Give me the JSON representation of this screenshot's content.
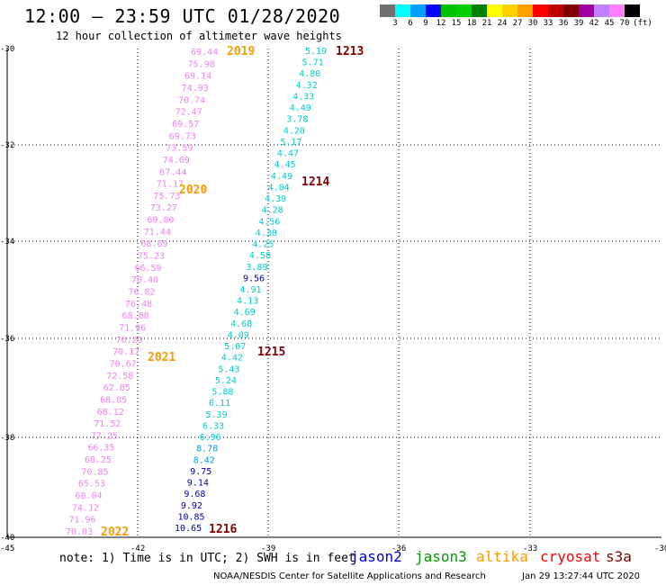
{
  "header": {
    "title": "12:00 — 23:59 UTC 01/28/2020",
    "subtitle": "12 hour collection of altimeter wave heights"
  },
  "legend": {
    "colors": [
      "#707070",
      "#00ffff",
      "#00a0ff",
      "#0000ff",
      "#00c000",
      "#00d000",
      "#008000",
      "#ffff00",
      "#ffd000",
      "#ffa000",
      "#ff0000",
      "#c00000",
      "#800000",
      "#a000a0",
      "#c080ff",
      "#ff80ff",
      "#000000"
    ],
    "labels": [
      "3",
      "6",
      "9",
      "12",
      "15",
      "18",
      "21",
      "24",
      "27",
      "30",
      "33",
      "36",
      "39",
      "42",
      "45",
      "70",
      "(ft)"
    ]
  },
  "axes": {
    "y_labels": [
      "-30",
      "-32",
      "-34",
      "-36",
      "-38",
      "-40"
    ],
    "x_labels": [
      "-45",
      "-42",
      "-39",
      "-36",
      "-33",
      "-30"
    ]
  },
  "passes": [
    {
      "id": "1213",
      "color": "#800000"
    },
    {
      "id": "1214",
      "color": "#800000"
    },
    {
      "id": "1215",
      "color": "#800000"
    },
    {
      "id": "1216",
      "color": "#800000"
    },
    {
      "id": "2019",
      "color": "#ff9900"
    },
    {
      "id": "2020",
      "color": "#ff9900"
    },
    {
      "id": "2021",
      "color": "#ff9900"
    },
    {
      "id": "2022",
      "color": "#ff9900"
    }
  ],
  "track_pink": [
    "69.44",
    "75.98",
    "69.14",
    "74.93",
    "70.74",
    "72.47",
    "69.57",
    "69.73",
    "73.59",
    "74.69",
    "67.44",
    "71.17",
    "75.73",
    "73.27",
    "69.80",
    "71.44",
    "68.69",
    "75.23",
    "66.59",
    "70.40",
    "76.82",
    "76.48",
    "68.88",
    "71.96",
    "70.29",
    "70.17",
    "70.67",
    "72.58",
    "62.85",
    "68.85",
    "68.12",
    "71.52",
    "77.25",
    "66.35",
    "68.25",
    "70.85",
    "65.53",
    "68.04",
    "74.12",
    "71.96",
    "70.03"
  ],
  "track_cyan": [
    "5.19",
    "5.71",
    "4.80",
    "4.32",
    "4.33",
    "4.49",
    "3.78",
    "4.20",
    "5.17",
    "4.47",
    "4.45",
    "4.49",
    "4.04",
    "4.39",
    "4.28",
    "4.56",
    "4.30",
    "4.25",
    "4.58",
    "3.89",
    "9.56",
    "4.91",
    "4.13",
    "4.69",
    "4.68",
    "4.09",
    "5.07",
    "4.42",
    "5.43",
    "5.24",
    "5.88",
    "6.11",
    "5.39",
    "6.33",
    "6.96",
    "8.78",
    "8.42",
    "9.75",
    "9.14",
    "9.68",
    "9.92",
    "10.85",
    "10.65"
  ],
  "footer": {
    "note": "note: 1) Time is in UTC; 2) SWH is in feet",
    "satellites": [
      {
        "name": "jason2",
        "color": "#0000cc"
      },
      {
        "name": "jason3",
        "color": "#009900"
      },
      {
        "name": "altika",
        "color": "#ff9900"
      },
      {
        "name": "cryosat",
        "color": "#ff0000"
      },
      {
        "name": "s3a",
        "color": "#800000"
      }
    ],
    "credit": "NOAA/NESDIS Center for Satellite Applications and Research",
    "timestamp": "Jan 29 13:27:44 UTC 2020"
  }
}
